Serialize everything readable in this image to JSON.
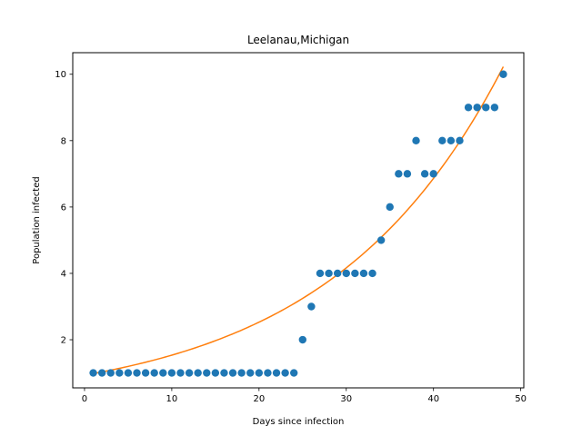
{
  "chart_data": {
    "type": "scatter",
    "title": "Leelanau,Michigan",
    "xlabel": "Days since infection",
    "ylabel": "Population infected",
    "xlim": [
      -1.35,
      50.35
    ],
    "ylim": [
      0.55,
      10.65
    ],
    "xticks": [
      0,
      10,
      20,
      30,
      40,
      50
    ],
    "yticks": [
      2,
      4,
      6,
      8,
      10
    ],
    "grid": false,
    "series": [
      {
        "kind": "scatter",
        "color": "#1f77b4",
        "x": [
          1,
          2,
          3,
          4,
          5,
          6,
          7,
          8,
          9,
          10,
          11,
          12,
          13,
          14,
          15,
          16,
          17,
          18,
          19,
          20,
          21,
          22,
          23,
          24,
          25,
          26,
          27,
          28,
          29,
          30,
          31,
          32,
          33,
          34,
          35,
          36,
          37,
          38,
          39,
          40,
          41,
          42,
          43,
          44,
          45,
          46,
          47,
          48
        ],
        "y": [
          1,
          1,
          1,
          1,
          1,
          1,
          1,
          1,
          1,
          1,
          1,
          1,
          1,
          1,
          1,
          1,
          1,
          1,
          1,
          1,
          1,
          1,
          1,
          1,
          2,
          3,
          4,
          4,
          4,
          4,
          4,
          4,
          4,
          5,
          6,
          7,
          7,
          8,
          7,
          7,
          8,
          8,
          8,
          9,
          9,
          9,
          9,
          10
        ]
      },
      {
        "kind": "line",
        "color": "#ff7f0e",
        "x": [
          1,
          48
        ],
        "y": [
          0.98,
          10.25
        ],
        "growth_rate": 0.0499
      }
    ]
  }
}
